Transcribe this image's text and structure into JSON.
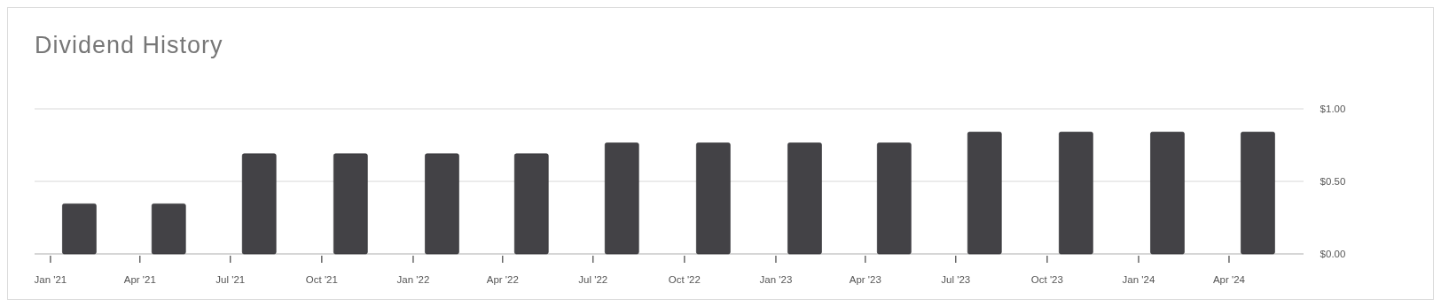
{
  "chart_data": {
    "type": "bar",
    "title": "Dividend History",
    "x": [
      "2021-01-30",
      "2021-04-30",
      "2021-07-30",
      "2021-10-30",
      "2022-01-30",
      "2022-04-30",
      "2022-07-30",
      "2022-10-30",
      "2023-01-30",
      "2023-04-30",
      "2023-07-30",
      "2023-10-30",
      "2024-01-30",
      "2024-04-30"
    ],
    "values": [
      0.345,
      0.345,
      0.69,
      0.69,
      0.69,
      0.69,
      0.765,
      0.765,
      0.765,
      0.765,
      0.84,
      0.84,
      0.84,
      0.84
    ],
    "color": "#434246",
    "xlim": [
      "2020-12-16",
      "2024-06-15"
    ],
    "xticks": [
      {
        "value": "2021-01-01",
        "label": "Jan '21"
      },
      {
        "value": "2021-04-01",
        "label": "Apr '21"
      },
      {
        "value": "2021-07-01",
        "label": "Jul '21"
      },
      {
        "value": "2021-10-01",
        "label": "Oct '21"
      },
      {
        "value": "2022-01-01",
        "label": "Jan '22"
      },
      {
        "value": "2022-04-01",
        "label": "Apr '22"
      },
      {
        "value": "2022-07-01",
        "label": "Jul '22"
      },
      {
        "value": "2022-10-01",
        "label": "Oct '22"
      },
      {
        "value": "2023-01-01",
        "label": "Jan '23"
      },
      {
        "value": "2023-04-01",
        "label": "Apr '23"
      },
      {
        "value": "2023-07-01",
        "label": "Jul '23"
      },
      {
        "value": "2023-10-01",
        "label": "Oct '23"
      },
      {
        "value": "2024-01-01",
        "label": "Jan '24"
      },
      {
        "value": "2024-04-01",
        "label": "Apr '24"
      }
    ],
    "ylim": [
      0,
      1
    ],
    "yticks": [
      {
        "value": 0,
        "label": "$0.00"
      },
      {
        "value": 0.5,
        "label": "$0.50"
      },
      {
        "value": 1,
        "label": "$1.00"
      }
    ],
    "grid": "y"
  }
}
